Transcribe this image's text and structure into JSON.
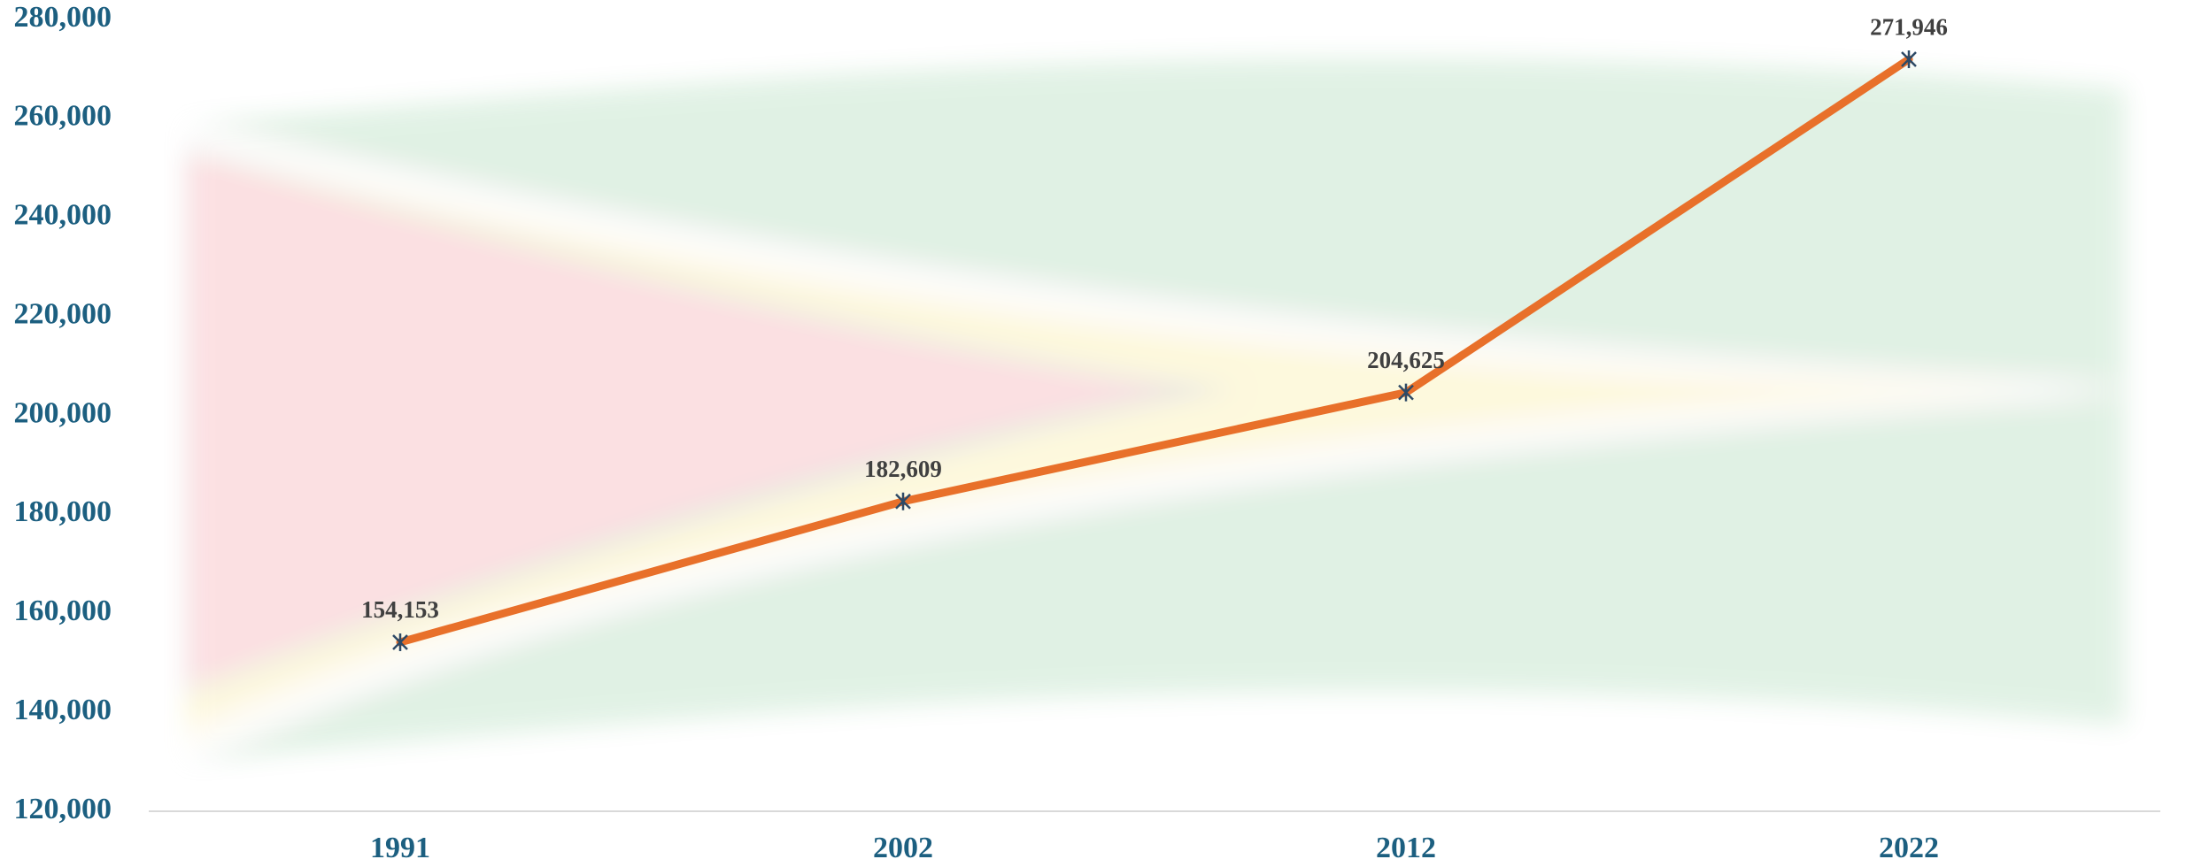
{
  "chart_data": {
    "type": "line",
    "categories": [
      "1991",
      "2002",
      "2012",
      "2022"
    ],
    "values": [
      154153,
      182609,
      204625,
      271946
    ],
    "value_labels": [
      "154,153",
      "182,609",
      "204,625",
      "271,946"
    ],
    "color": "#e8702a",
    "marker_color": "#2e4a66",
    "ylim": [
      120000,
      280000
    ],
    "yticks": [
      {
        "value": 120000,
        "label": "120,000"
      },
      {
        "value": 140000,
        "label": "140,000"
      },
      {
        "value": 160000,
        "label": "160,000"
      },
      {
        "value": 180000,
        "label": "180,000"
      },
      {
        "value": 200000,
        "label": "200,000"
      },
      {
        "value": 220000,
        "label": "220,000"
      },
      {
        "value": 240000,
        "label": "240,000"
      },
      {
        "value": 260000,
        "label": "260,000"
      },
      {
        "value": 280000,
        "label": "280,000"
      }
    ],
    "grid": false
  }
}
